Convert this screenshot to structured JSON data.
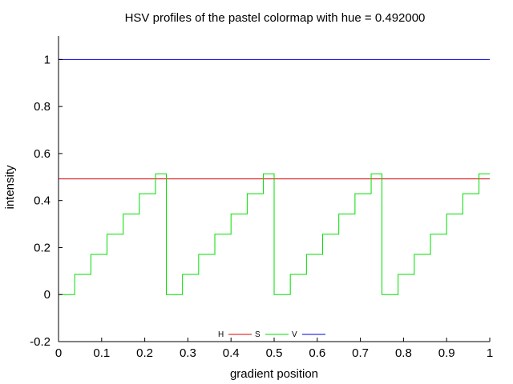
{
  "chart_data": {
    "type": "line",
    "title": "HSV profiles of the pastel colormap with hue = 0.492000",
    "xlabel": "gradient position",
    "ylabel": "intensity",
    "xlim": [
      0,
      1
    ],
    "ylim": [
      -0.2,
      1.1
    ],
    "xticks": [
      0,
      0.1,
      0.2,
      0.3,
      0.4,
      0.5,
      0.6,
      0.7,
      0.8,
      0.9,
      1
    ],
    "xtick_labels": [
      "0",
      "0.1",
      "0.2",
      "0.3",
      "0.4",
      "0.5",
      "0.6",
      "0.7",
      "0.8",
      "0.9",
      "1"
    ],
    "yticks": [
      -0.2,
      0,
      0.2,
      0.4,
      0.6,
      0.8,
      1
    ],
    "ytick_labels": [
      "-0.2",
      "0",
      "0.2",
      "0.4",
      "0.6",
      "0.8",
      "1"
    ],
    "grid": false,
    "legend_position": "bottom-center",
    "series": [
      {
        "name": "H",
        "color": "#dd0000",
        "step": false,
        "x": [
          0,
          1
        ],
        "y": [
          0.492,
          0.492
        ]
      },
      {
        "name": "S",
        "color": "#00dd00",
        "step": true,
        "x": [
          0,
          0.0375,
          0.075,
          0.1125,
          0.15,
          0.1875,
          0.225,
          0.25,
          0.2875,
          0.325,
          0.3625,
          0.4,
          0.4375,
          0.475,
          0.5,
          0.5375,
          0.575,
          0.6125,
          0.65,
          0.6875,
          0.725,
          0.75,
          0.7875,
          0.825,
          0.8625,
          0.9,
          0.9375,
          0.975,
          1
        ],
        "y": [
          0,
          0.086,
          0.171,
          0.257,
          0.343,
          0.429,
          0.514,
          0,
          0.086,
          0.171,
          0.257,
          0.343,
          0.429,
          0.514,
          0,
          0.086,
          0.171,
          0.257,
          0.343,
          0.429,
          0.514,
          0,
          0.086,
          0.171,
          0.257,
          0.343,
          0.429,
          0.514,
          0.514
        ]
      },
      {
        "name": "V",
        "color": "#0000dd",
        "step": false,
        "x": [
          0,
          1
        ],
        "y": [
          1,
          1
        ]
      }
    ]
  }
}
